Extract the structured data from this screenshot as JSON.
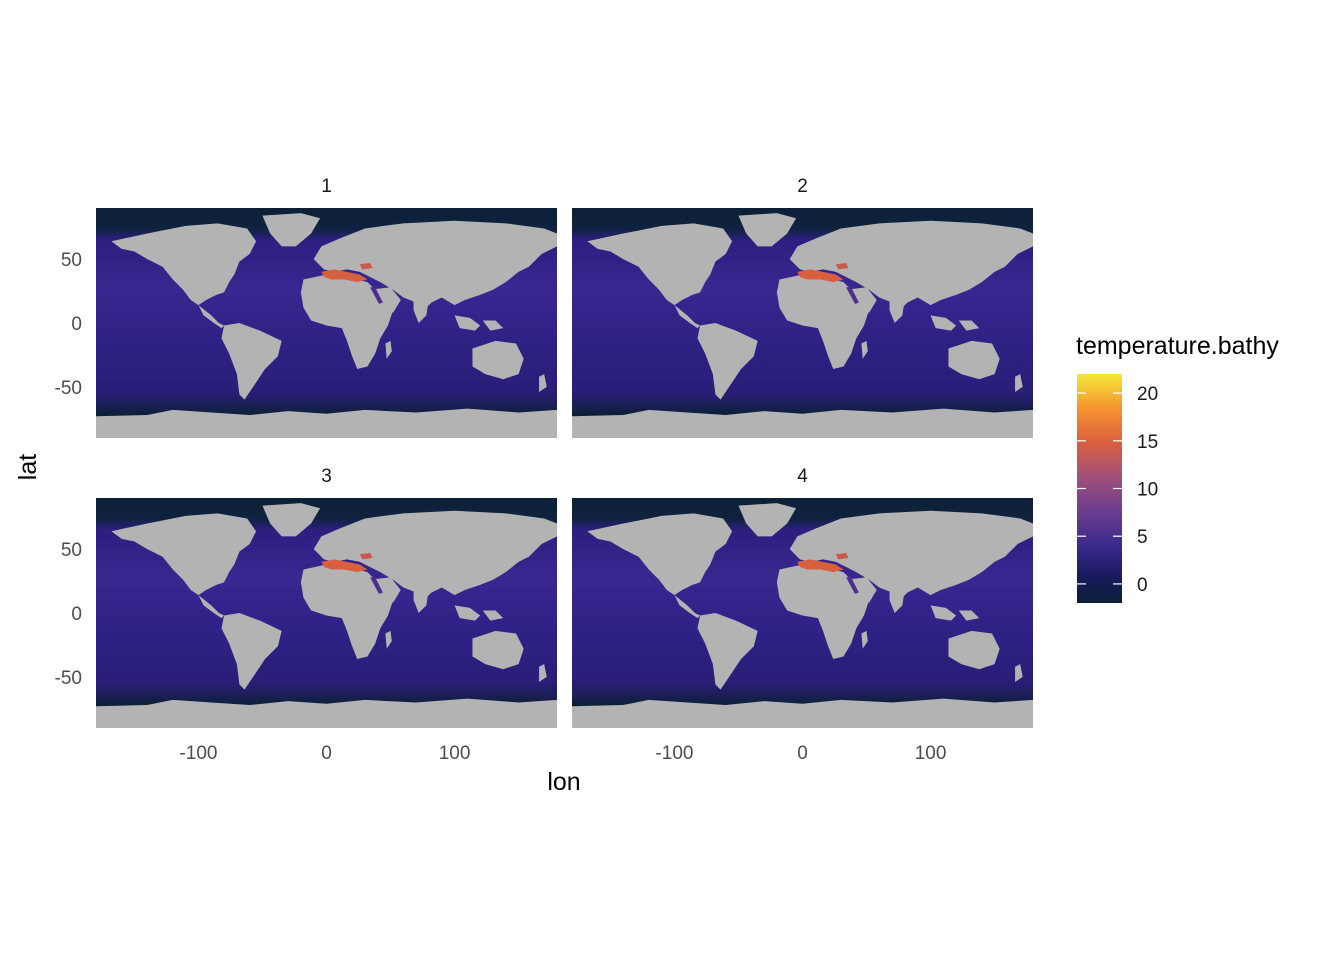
{
  "chart_data": {
    "type": "heatmap",
    "description_kind": "faceted map",
    "xlabel": "lon",
    "ylabel": "lat",
    "xlim": [
      -180,
      180
    ],
    "ylim": [
      -90,
      90
    ],
    "x_ticks": [
      -100,
      0,
      100
    ],
    "y_ticks": [
      50,
      0,
      -50
    ],
    "grid": true,
    "facets": [
      {
        "label": "1"
      },
      {
        "label": "2"
      },
      {
        "label": "3"
      },
      {
        "label": "4"
      }
    ],
    "fill_variable": "temperature.bathy",
    "colorbar": {
      "title": "temperature.bathy",
      "range": [
        -2,
        22
      ],
      "ticks": [
        0,
        5,
        10,
        15,
        20
      ],
      "colors": [
        "#0b1f35",
        "#1a1a5e",
        "#3b2a8e",
        "#6b3d8f",
        "#a0507a",
        "#d9603f",
        "#f5932f",
        "#f4e83a"
      ],
      "placement": "right"
    },
    "colors": {
      "land": "#b3b3b3",
      "deep_ocean": "#2a1f78",
      "polar": "#0b2036",
      "mediterranean": "#d9603f"
    }
  }
}
